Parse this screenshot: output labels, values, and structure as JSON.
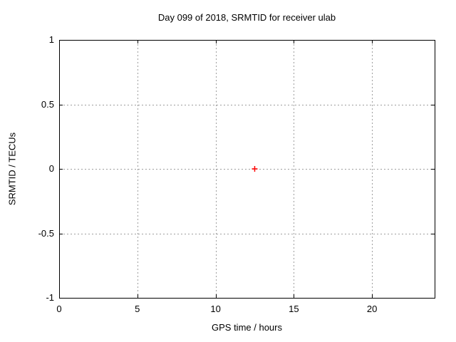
{
  "chart_data": {
    "type": "scatter",
    "title": "Day 099 of 2018, SRMTID for receiver ulab",
    "xlabel": "GPS time / hours",
    "ylabel": "SRMTID / TECUs",
    "xlim": [
      0,
      24
    ],
    "ylim": [
      -1,
      1
    ],
    "xticks": [
      0,
      5,
      10,
      15,
      20
    ],
    "xtick_labels": [
      "0",
      "5",
      "10",
      "15",
      "20"
    ],
    "yticks": [
      1,
      0.5,
      0,
      -0.5,
      -1
    ],
    "ytick_labels": [
      "1",
      "0.5",
      "0",
      "-0.5",
      "-1"
    ],
    "grid": true,
    "legend": "none",
    "series": [
      {
        "marker": "plus",
        "color": "#ff0000",
        "points": [
          [
            12.5,
            0.0
          ]
        ]
      }
    ],
    "colors": {
      "background": "#ffffff",
      "border": "#000000",
      "grid": "#9e9e9e",
      "text": "#000000"
    }
  }
}
